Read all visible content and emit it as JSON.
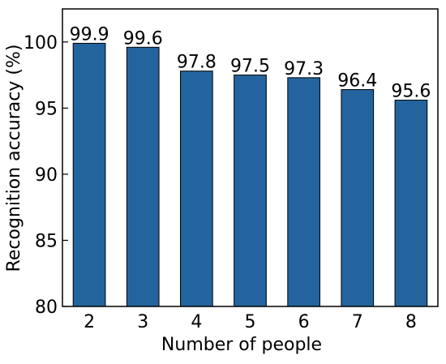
{
  "chart_data": {
    "type": "bar",
    "x_label": "Number of people",
    "y_label": "Recognition accuracy (%)",
    "categories": [
      "2",
      "3",
      "4",
      "5",
      "6",
      "7",
      "8"
    ],
    "values": [
      99.9,
      99.6,
      97.8,
      97.5,
      97.3,
      96.4,
      95.6
    ],
    "color": "#23649e",
    "ylim": [
      80,
      102.5
    ],
    "yticks": [
      80,
      85,
      90,
      95,
      100
    ],
    "grid": false
  }
}
